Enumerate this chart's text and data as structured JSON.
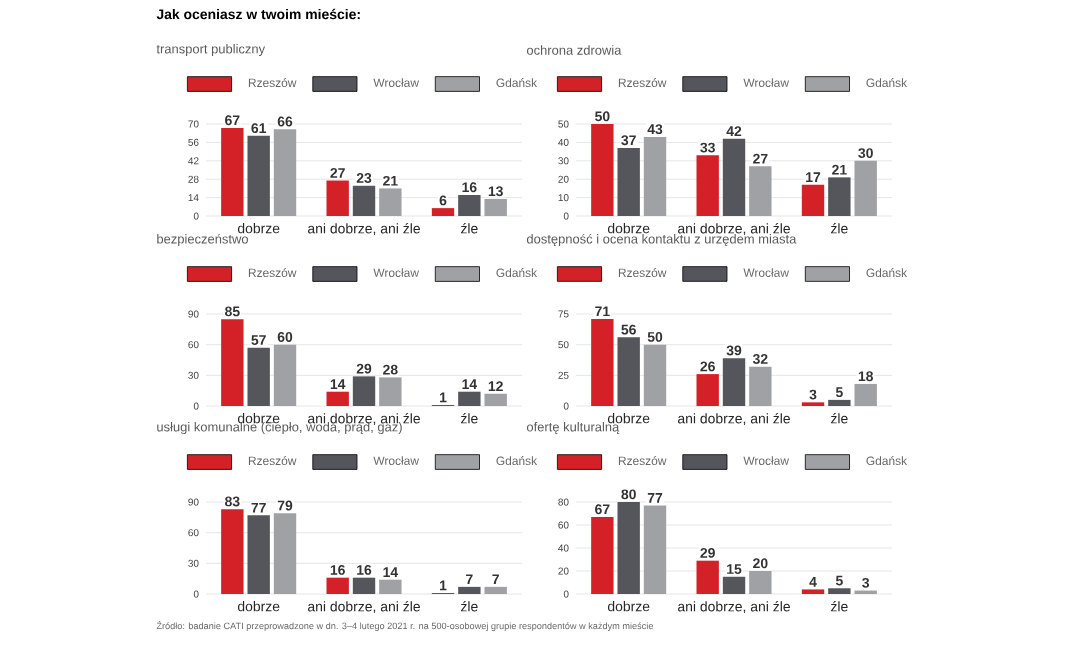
{
  "chart_data": [
    {
      "type": "bar",
      "title": "Jak oceniasz w twoim mieście:",
      "subtitle": "transport publiczny",
      "categories": [
        "dobrze",
        "ani dobrze, ani źle",
        "źle"
      ],
      "series": [
        {
          "name": "Rzeszów",
          "color": "#d42027",
          "values": [
            67,
            27,
            6
          ]
        },
        {
          "name": "Wrocław",
          "color": "#54565b",
          "values": [
            61,
            23,
            16
          ]
        },
        {
          "name": "Gdańsk",
          "color": "#a0a1a4",
          "values": [
            66,
            21,
            13
          ]
        }
      ],
      "ylim": [
        0,
        70
      ],
      "yticks": [
        0,
        14,
        28,
        42,
        56,
        70
      ],
      "data_labels": true,
      "legend": "top",
      "grid": "y"
    },
    {
      "type": "bar",
      "title": "ochrona zdrowia",
      "categories": [
        "dobrze",
        "ani dobrze, ani źle",
        "źle"
      ],
      "series": [
        {
          "name": "Rzeszów",
          "color": "#d42027",
          "values": [
            50,
            33,
            17
          ]
        },
        {
          "name": "Wrocław",
          "color": "#54565b",
          "values": [
            37,
            42,
            21
          ]
        },
        {
          "name": "Gdańsk",
          "color": "#a0a1a4",
          "values": [
            43,
            27,
            30
          ]
        }
      ],
      "ylim": [
        0,
        50
      ],
      "yticks": [
        0,
        10,
        20,
        30,
        40,
        50
      ],
      "data_labels": true,
      "legend": "top",
      "grid": "y"
    },
    {
      "type": "bar",
      "title": "bezpieczeństwo",
      "categories": [
        "dobrze",
        "ani dobrze, ani źle",
        "źle"
      ],
      "series": [
        {
          "name": "Rzeszów",
          "color": "#d42027",
          "values": [
            85,
            14,
            1
          ]
        },
        {
          "name": "Wrocław",
          "color": "#54565b",
          "values": [
            57,
            29,
            14
          ]
        },
        {
          "name": "Gdańsk",
          "color": "#a0a1a4",
          "values": [
            60,
            28,
            12
          ]
        }
      ],
      "ylim": [
        0,
        90
      ],
      "yticks": [
        0,
        30,
        60,
        90
      ],
      "data_labels": true,
      "legend": "top",
      "grid": "y"
    },
    {
      "type": "bar",
      "title": "dostępność i ocena kontaktu z urzędem miasta",
      "categories": [
        "dobrze",
        "ani dobrze, ani źle",
        "źle"
      ],
      "series": [
        {
          "name": "Rzeszów",
          "color": "#d42027",
          "values": [
            71,
            26,
            3
          ]
        },
        {
          "name": "Wrocław",
          "color": "#54565b",
          "values": [
            56,
            39,
            5
          ]
        },
        {
          "name": "Gdańsk",
          "color": "#a0a1a4",
          "values": [
            50,
            32,
            18
          ]
        }
      ],
      "ylim": [
        0,
        75
      ],
      "yticks": [
        0,
        25,
        50,
        75
      ],
      "data_labels": true,
      "legend": "top",
      "grid": "y"
    },
    {
      "type": "bar",
      "title": "usługi komunalne (ciepło, woda, prąd, gaz)",
      "categories": [
        "dobrze",
        "ani dobrze, ani źle",
        "źle"
      ],
      "series": [
        {
          "name": "Rzeszów",
          "color": "#d42027",
          "values": [
            83,
            16,
            1
          ]
        },
        {
          "name": "Wrocław",
          "color": "#54565b",
          "values": [
            77,
            16,
            7
          ]
        },
        {
          "name": "Gdańsk",
          "color": "#a0a1a4",
          "values": [
            79,
            14,
            7
          ]
        }
      ],
      "ylim": [
        0,
        90
      ],
      "yticks": [
        0,
        30,
        60,
        90
      ],
      "data_labels": true,
      "legend": "top",
      "grid": "y",
      "annotations": [
        "Źródło: badanie CATI przeprowadzone w dn. 3–4 lutego 2021 r. na 500-osobowej grupie respondentów w każdym mieście"
      ]
    },
    {
      "type": "bar",
      "title": "ofertę kulturalną",
      "categories": [
        "dobrze",
        "ani dobrze, ani źle",
        "źle"
      ],
      "series": [
        {
          "name": "Rzeszów",
          "color": "#d42027",
          "values": [
            67,
            29,
            4
          ]
        },
        {
          "name": "Wrocław",
          "color": "#54565b",
          "values": [
            80,
            15,
            5
          ]
        },
        {
          "name": "Gdańsk",
          "color": "#a0a1a4",
          "values": [
            77,
            20,
            3
          ]
        }
      ],
      "ylim": [
        0,
        80
      ],
      "yticks": [
        0,
        20,
        40,
        60,
        80
      ],
      "data_labels": true,
      "legend": "top",
      "grid": "y"
    }
  ]
}
